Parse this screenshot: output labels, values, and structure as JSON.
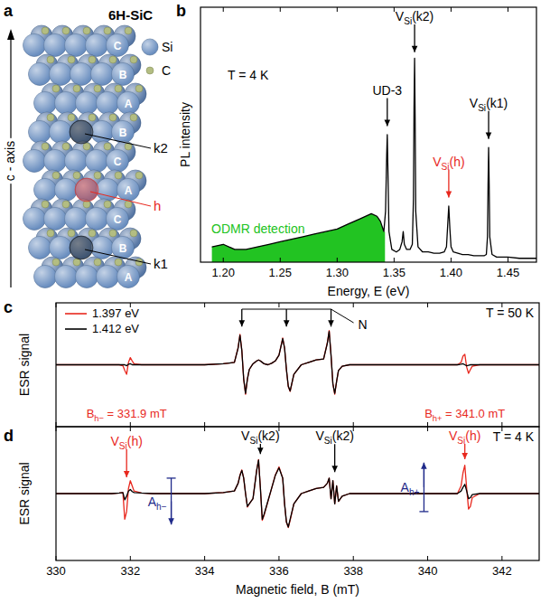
{
  "diagram": {
    "panel_label": "a",
    "title": "6H-SiC",
    "legend": [
      {
        "label": "Si",
        "color": "#6b8fc0"
      },
      {
        "label": "C",
        "color": "#b3bd82"
      }
    ],
    "axis_label": "c - axis",
    "stacking": [
      "C",
      "B",
      "A",
      "B",
      "C",
      "A",
      "C",
      "B",
      "A"
    ],
    "sites": [
      {
        "label": "k2",
        "layer": 3,
        "color": "#000000"
      },
      {
        "label": "h",
        "layer": 5,
        "color": "#e8281e"
      },
      {
        "label": "k1",
        "layer": 7,
        "color": "#000000"
      }
    ]
  },
  "chart_data": [
    {
      "panel_label": "b",
      "type": "line",
      "x_label": "Energy, E (eV)",
      "y_label": "PL intensity",
      "xlim": [
        1.18,
        1.475
      ],
      "ylim": [
        0,
        1
      ],
      "xticks": [
        {
          "value": 1.2,
          "label": "1.20"
        },
        1.25,
        {
          "value": 1.3,
          "label": "1.30"
        },
        1.35,
        {
          "value": 1.4,
          "label": "1.40"
        },
        1.45
      ],
      "tick_labels": "x",
      "series": [
        {
          "color": "#000000",
          "x": [
            1.19,
            1.2,
            1.21,
            1.22,
            1.23,
            1.24,
            1.25,
            1.26,
            1.27,
            1.28,
            1.29,
            1.3,
            1.31,
            1.32,
            1.33,
            1.335,
            1.338,
            1.341,
            1.3425,
            1.3435,
            1.344,
            1.3445,
            1.3455,
            1.348,
            1.352,
            1.355,
            1.357,
            1.358,
            1.359,
            1.361,
            1.364,
            1.366,
            1.367,
            1.3675,
            1.368,
            1.3685,
            1.369,
            1.371,
            1.375,
            1.38,
            1.385,
            1.39,
            1.394,
            1.396,
            1.397,
            1.398,
            1.399,
            1.4,
            1.402,
            1.406,
            1.41,
            1.415,
            1.42,
            1.425,
            1.429,
            1.431,
            1.432,
            1.4325,
            1.433,
            1.4335,
            1.434,
            1.436,
            1.44,
            1.45,
            1.46,
            1.475
          ],
          "values": [
            0.06,
            0.07,
            0.05,
            0.05,
            0.06,
            0.07,
            0.08,
            0.09,
            0.1,
            0.11,
            0.12,
            0.13,
            0.15,
            0.17,
            0.19,
            0.18,
            0.16,
            0.12,
            0.2,
            0.42,
            0.5,
            0.38,
            0.12,
            0.05,
            0.04,
            0.05,
            0.08,
            0.12,
            0.07,
            0.05,
            0.05,
            0.07,
            0.25,
            0.6,
            0.8,
            0.55,
            0.2,
            0.06,
            0.04,
            0.04,
            0.035,
            0.035,
            0.04,
            0.06,
            0.14,
            0.22,
            0.13,
            0.06,
            0.04,
            0.035,
            0.03,
            0.03,
            0.025,
            0.025,
            0.025,
            0.03,
            0.1,
            0.3,
            0.45,
            0.3,
            0.1,
            0.03,
            0.02,
            0.02,
            0.015,
            0.015
          ]
        }
      ],
      "highlight": {
        "text": "ODMR detection",
        "x": [
          1.19,
          1.342
        ],
        "color": "#22c322"
      },
      "arrows": [
        {
          "label": {
            "text": "UD-3"
          },
          "x": 1.344,
          "y": 0.53,
          "color": "#000000"
        },
        {
          "label": {
            "text": "V",
            "sub": "Si",
            "tail": "(k2)"
          },
          "x": 1.368,
          "y": 0.82,
          "color": "#000000"
        },
        {
          "label": {
            "text": "V",
            "sub": "Si",
            "tail": "(h)"
          },
          "x": 1.398,
          "y": 0.25,
          "color": "#e8281e"
        },
        {
          "label": {
            "text": "V",
            "sub": "Si",
            "tail": "(k1)"
          },
          "x": 1.433,
          "y": 0.48,
          "color": "#000000"
        }
      ],
      "annotations": [
        {
          "text": "T = 4 K"
        }
      ]
    },
    {
      "panel_label": "c",
      "type": "line",
      "y_label": "ESR signal",
      "xlim": [
        330,
        343
      ],
      "ylim": [
        -1.3,
        1.3
      ],
      "xticks": [
        330,
        332,
        334,
        336,
        338,
        340,
        342
      ],
      "tick_labels": false,
      "legend": "upper left",
      "x": [
        330,
        330.5,
        331,
        331.5,
        331.7,
        331.8,
        331.85,
        331.9,
        331.95,
        332,
        332.05,
        332.1,
        332.3,
        332.6,
        333,
        333.5,
        334,
        334.5,
        334.8,
        334.9,
        334.95,
        335,
        335.05,
        335.1,
        335.15,
        335.2,
        335.3,
        335.4,
        335.45,
        335.5,
        335.55,
        335.6,
        335.7,
        335.8,
        335.9,
        336,
        336.1,
        336.15,
        336.2,
        336.25,
        336.3,
        336.4,
        336.6,
        336.8,
        337,
        337.2,
        337.3,
        337.35,
        337.4,
        337.45,
        337.5,
        337.55,
        337.6,
        337.7,
        337.9,
        338.2,
        338.6,
        339,
        339.5,
        340,
        340.5,
        340.8,
        340.9,
        340.95,
        341,
        341.05,
        341.1,
        341.15,
        341.2,
        341.4,
        341.8,
        342.2,
        342.6,
        343
      ],
      "series": [
        {
          "name": "1.397 eV",
          "color": "#e8281e",
          "values": [
            0,
            0,
            0,
            0,
            0,
            -0.02,
            -0.12,
            -0.2,
            0.05,
            0.15,
            0.08,
            0.02,
            0,
            0,
            0,
            0,
            0,
            0.02,
            0.05,
            0.36,
            0.64,
            0.3,
            -0.3,
            -0.62,
            -0.3,
            -0.1,
            0.02,
            0.08,
            0.1,
            0.08,
            0.05,
            0.02,
            0,
            0.03,
            0.08,
            0.2,
            0.56,
            0.35,
            -0.1,
            -0.46,
            -0.56,
            -0.2,
            0,
            0.05,
            0.1,
            0.12,
            0.46,
            0.72,
            0.2,
            -0.4,
            -0.62,
            -0.35,
            -0.12,
            -0.03,
            0,
            0,
            0,
            0,
            0,
            0,
            0,
            0,
            0.05,
            0.18,
            0.22,
            -0.05,
            -0.18,
            -0.1,
            -0.03,
            0,
            0,
            0,
            0,
            0
          ]
        },
        {
          "name": "1.412 eV",
          "color": "#000000",
          "values": [
            0,
            0,
            0,
            0,
            0,
            0,
            0,
            -0.02,
            0.01,
            0.02,
            0,
            0,
            0,
            0,
            0,
            0,
            0,
            0.02,
            0.05,
            0.35,
            0.62,
            0.3,
            -0.3,
            -0.6,
            -0.3,
            -0.1,
            0.02,
            0.08,
            0.1,
            0.08,
            0.05,
            0.02,
            0,
            0.03,
            0.08,
            0.2,
            0.55,
            0.35,
            -0.1,
            -0.45,
            -0.55,
            -0.2,
            0,
            0.05,
            0.1,
            0.12,
            0.45,
            0.7,
            0.2,
            -0.4,
            -0.6,
            -0.35,
            -0.12,
            -0.03,
            0,
            0,
            0,
            0,
            0,
            0,
            0,
            0,
            0.01,
            0.02,
            0,
            -0.02,
            -0.01,
            0,
            0,
            0,
            0,
            0,
            0,
            0
          ]
        }
      ],
      "line_group": {
        "label": "N",
        "x": [
          335.0,
          336.2,
          337.4
        ],
        "y": 0.8
      },
      "field_labels": [
        {
          "text": "B",
          "sub": "h−",
          "tail": " = 331.9 mT",
          "x": 331.9,
          "color": "#e8281e"
        },
        {
          "text": "B",
          "sub": "h+",
          "tail": " = 341.0 mT",
          "x": 341.0,
          "color": "#e8281e"
        }
      ],
      "annotations": [
        {
          "text": "T = 50 K"
        }
      ]
    },
    {
      "panel_label": "d",
      "type": "line",
      "x_label": "Magnetic field, B (mT)",
      "y_label": "ESR signal",
      "xlim": [
        330,
        343
      ],
      "ylim": [
        -1.3,
        1.3
      ],
      "xticks": [
        330,
        332,
        334,
        336,
        338,
        340,
        342
      ],
      "tick_labels": "x",
      "x": [
        330,
        330.5,
        331,
        331.5,
        331.7,
        331.8,
        331.85,
        331.9,
        331.95,
        332,
        332.05,
        332.1,
        332.3,
        332.6,
        333,
        333.5,
        334,
        334.5,
        334.8,
        334.9,
        334.95,
        335,
        335.05,
        335.1,
        335.15,
        335.2,
        335.3,
        335.4,
        335.45,
        335.5,
        335.55,
        335.6,
        335.7,
        335.8,
        335.9,
        336,
        336.1,
        336.15,
        336.2,
        336.25,
        336.3,
        336.4,
        336.6,
        336.8,
        337,
        337.2,
        337.3,
        337.35,
        337.4,
        337.45,
        337.5,
        337.55,
        337.6,
        337.7,
        337.9,
        338.2,
        338.6,
        339,
        339.5,
        340,
        340.5,
        340.8,
        340.9,
        340.95,
        341,
        341.05,
        341.1,
        341.15,
        341.2,
        341.4,
        341.8,
        342.2,
        342.6,
        343
      ],
      "series": [
        {
          "color": "#e8281e",
          "values": [
            0,
            0,
            0,
            0,
            0.01,
            0.02,
            -0.5,
            -0.35,
            0.1,
            0.25,
            0.15,
            0.05,
            0.01,
            0,
            0,
            0,
            0,
            0.02,
            0.05,
            0.2,
            0.36,
            0.46,
            0.3,
            0,
            -0.26,
            -0.2,
            -0.1,
            0.46,
            0.66,
            0.1,
            -0.52,
            -0.42,
            -0.16,
            0.1,
            0.36,
            0.52,
            0.3,
            -0.2,
            -0.56,
            -0.66,
            -0.52,
            -0.2,
            0,
            0.05,
            0.1,
            0.12,
            0.2,
            0.3,
            -0.1,
            0.25,
            -0.2,
            0.15,
            -0.15,
            -0.05,
            0,
            0,
            0,
            0,
            0,
            0,
            0,
            0,
            0.15,
            0.4,
            0.55,
            0.1,
            -0.3,
            -0.25,
            -0.08,
            0,
            0,
            0,
            0,
            0
          ]
        },
        {
          "color": "#000000",
          "values": [
            0,
            0,
            0,
            0,
            0.01,
            0.02,
            -0.12,
            -0.05,
            0.05,
            0.08,
            0.04,
            0.02,
            0.01,
            0,
            0,
            0,
            0,
            0.02,
            0.05,
            0.2,
            0.35,
            0.45,
            0.3,
            0,
            -0.25,
            -0.2,
            -0.1,
            0.45,
            0.65,
            0.1,
            -0.5,
            -0.4,
            -0.15,
            0.1,
            0.35,
            0.5,
            0.3,
            -0.2,
            -0.55,
            -0.65,
            -0.5,
            -0.2,
            0,
            0.05,
            0.1,
            0.12,
            0.2,
            0.3,
            -0.1,
            0.25,
            -0.2,
            0.15,
            -0.15,
            -0.05,
            0,
            0,
            0,
            0,
            0,
            0,
            0,
            0,
            0.05,
            0.12,
            0.18,
            0.05,
            -0.1,
            -0.08,
            -0.02,
            0,
            0,
            0,
            0,
            0
          ]
        }
      ],
      "arrows": [
        {
          "label": {
            "text": "V",
            "sub": "Si",
            "tail": "(h)"
          },
          "x": 331.9,
          "y": 0.3,
          "color": "#e8281e"
        },
        {
          "label": {
            "text": "V",
            "sub": "Si",
            "tail": "(k2)"
          },
          "x": 335.5,
          "y": 0.75,
          "color": "#000000"
        },
        {
          "label": {
            "text": "V",
            "sub": "Si",
            "tail": "(k2)"
          },
          "x": 337.5,
          "y": 0.4,
          "color": "#000000"
        },
        {
          "label": {
            "text": "V",
            "sub": "Si",
            "tail": "(h)"
          },
          "x": 341.0,
          "y": 0.65,
          "color": "#e8281e"
        }
      ],
      "amplitudes": [
        {
          "label": {
            "text": "A",
            "sub": "h−"
          },
          "x": 333.1,
          "from": 0.3,
          "to": -0.6,
          "color": "#1f2a8a"
        },
        {
          "label": {
            "text": "A",
            "sub": "h+"
          },
          "x": 339.9,
          "from": -0.35,
          "to": 0.6,
          "color": "#1f2a8a"
        }
      ],
      "annotations": [
        {
          "text": "T = 4 K"
        }
      ]
    }
  ]
}
